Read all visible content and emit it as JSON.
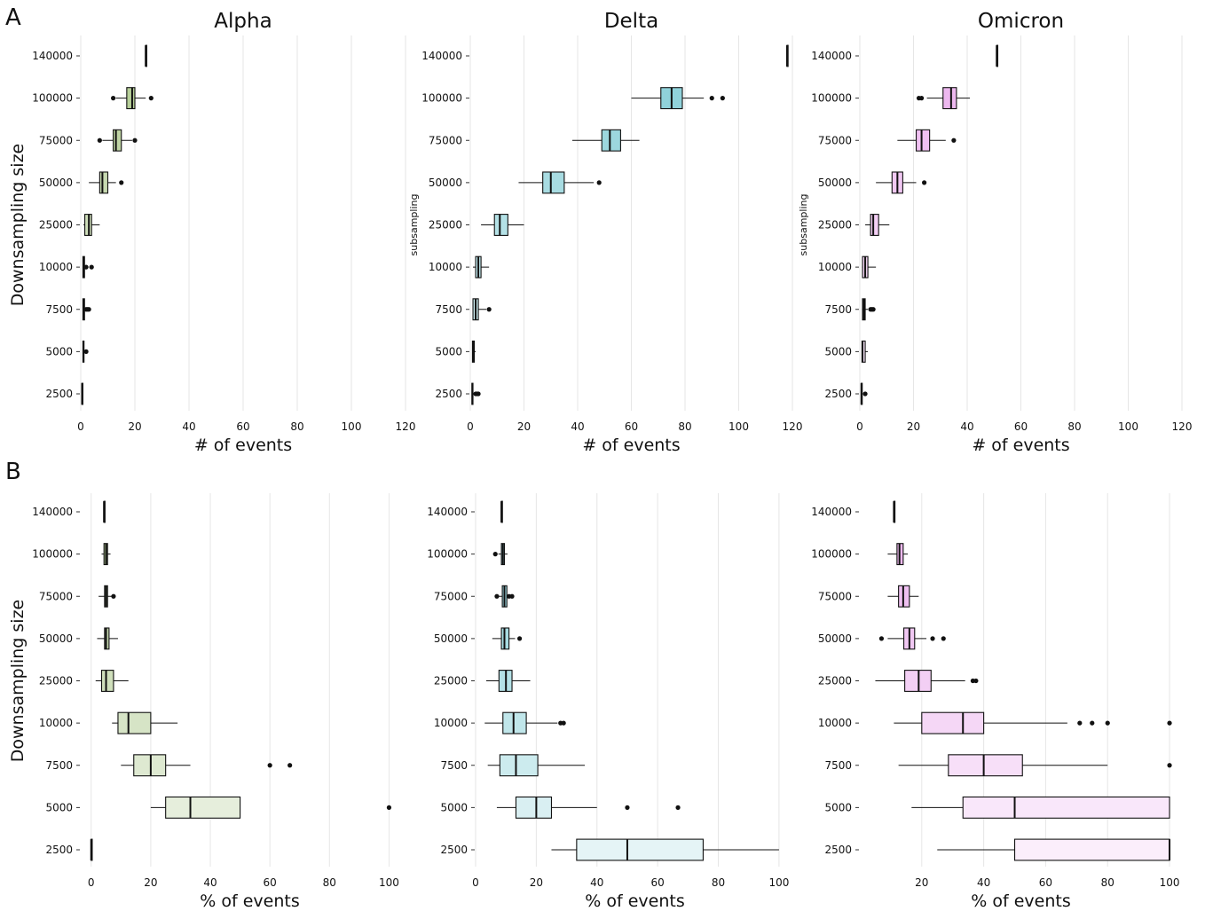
{
  "panel_letters": [
    "A",
    "B"
  ],
  "chart_data": [
    {
      "type": "boxplot",
      "row": "A",
      "title": "Alpha",
      "xlabel": "# of events",
      "ylabel": "Downsampling size",
      "color": "#8db35e",
      "xlim": [
        0,
        120
      ],
      "xticks": [
        0,
        20,
        40,
        60,
        80,
        100,
        120
      ],
      "categories": [
        "2500",
        "5000",
        "7500",
        "10000",
        "25000",
        "50000",
        "75000",
        "100000",
        "140000"
      ],
      "boxes": [
        {
          "cat": "2500",
          "q1": 0.4,
          "med": 0.5,
          "q3": 0.6,
          "lo": 0.4,
          "hi": 0.6,
          "out": []
        },
        {
          "cat": "5000",
          "q1": 0.8,
          "med": 1,
          "q3": 1.2,
          "lo": 0.8,
          "hi": 1.2,
          "out": [
            2
          ]
        },
        {
          "cat": "7500",
          "q1": 0.8,
          "med": 1,
          "q3": 1.4,
          "lo": 0.8,
          "hi": 2,
          "out": [
            2,
            2.5,
            3
          ]
        },
        {
          "cat": "10000",
          "q1": 0.8,
          "med": 1,
          "q3": 1.4,
          "lo": 0.8,
          "hi": 2,
          "out": [
            2,
            4
          ]
        },
        {
          "cat": "25000",
          "q1": 1.5,
          "med": 3,
          "q3": 4,
          "lo": 1,
          "hi": 7,
          "out": []
        },
        {
          "cat": "50000",
          "q1": 7,
          "med": 8,
          "q3": 10,
          "lo": 3,
          "hi": 13,
          "out": [
            15
          ]
        },
        {
          "cat": "75000",
          "q1": 12,
          "med": 13,
          "q3": 15,
          "lo": 8,
          "hi": 19,
          "out": [
            7,
            20
          ]
        },
        {
          "cat": "100000",
          "q1": 17,
          "med": 19,
          "q3": 20,
          "lo": 13,
          "hi": 24,
          "out": [
            12,
            26
          ]
        },
        {
          "cat": "140000",
          "q1": 24,
          "med": 24,
          "q3": 24,
          "lo": 24,
          "hi": 24,
          "out": []
        }
      ]
    },
    {
      "type": "boxplot",
      "row": "A",
      "title": "Delta",
      "xlabel": "# of events",
      "ylabel": "subsampling",
      "color": "#4fb8c4",
      "xlim": [
        0,
        120
      ],
      "xticks": [
        0,
        20,
        40,
        60,
        80,
        100,
        120
      ],
      "categories": [
        "2500",
        "5000",
        "7500",
        "10000",
        "25000",
        "50000",
        "75000",
        "100000",
        "140000"
      ],
      "boxes": [
        {
          "cat": "2500",
          "q1": 0.6,
          "med": 0.8,
          "q3": 1,
          "lo": 0.6,
          "hi": 1,
          "out": [
            2,
            2.5,
            3
          ]
        },
        {
          "cat": "5000",
          "q1": 0.8,
          "med": 1,
          "q3": 1.5,
          "lo": 0.8,
          "hi": 2,
          "out": []
        },
        {
          "cat": "7500",
          "q1": 1,
          "med": 2,
          "q3": 3,
          "lo": 1,
          "hi": 6,
          "out": [
            7
          ]
        },
        {
          "cat": "10000",
          "q1": 2,
          "med": 3,
          "q3": 4,
          "lo": 1,
          "hi": 7,
          "out": []
        },
        {
          "cat": "25000",
          "q1": 9,
          "med": 11,
          "q3": 14,
          "lo": 4,
          "hi": 20,
          "out": []
        },
        {
          "cat": "50000",
          "q1": 27,
          "med": 30,
          "q3": 35,
          "lo": 18,
          "hi": 46,
          "out": [
            48
          ]
        },
        {
          "cat": "75000",
          "q1": 49,
          "med": 52,
          "q3": 56,
          "lo": 38,
          "hi": 63,
          "out": []
        },
        {
          "cat": "100000",
          "q1": 71,
          "med": 75,
          "q3": 79,
          "lo": 60,
          "hi": 87,
          "out": [
            90,
            94
          ]
        },
        {
          "cat": "140000",
          "q1": 118,
          "med": 118,
          "q3": 118,
          "lo": 118,
          "hi": 118,
          "out": []
        }
      ]
    },
    {
      "type": "boxplot",
      "row": "A",
      "title": "Omicron",
      "xlabel": "# of events",
      "ylabel": "subsampling",
      "color": "#e28fe6",
      "xlim": [
        0,
        120
      ],
      "xticks": [
        0,
        20,
        40,
        60,
        80,
        100,
        120
      ],
      "categories": [
        "2500",
        "5000",
        "7500",
        "10000",
        "25000",
        "50000",
        "75000",
        "100000",
        "140000"
      ],
      "boxes": [
        {
          "cat": "2500",
          "q1": 0.5,
          "med": 0.6,
          "q3": 0.8,
          "lo": 0.5,
          "hi": 0.8,
          "out": [
            2
          ]
        },
        {
          "cat": "5000",
          "q1": 0.8,
          "med": 1,
          "q3": 2,
          "lo": 0.8,
          "hi": 3,
          "out": []
        },
        {
          "cat": "7500",
          "q1": 1,
          "med": 1.5,
          "q3": 2,
          "lo": 0.8,
          "hi": 3,
          "out": [
            4,
            4.5,
            5
          ]
        },
        {
          "cat": "10000",
          "q1": 1,
          "med": 2,
          "q3": 3,
          "lo": 0.8,
          "hi": 6,
          "out": []
        },
        {
          "cat": "25000",
          "q1": 4,
          "med": 5,
          "q3": 7,
          "lo": 2,
          "hi": 11,
          "out": []
        },
        {
          "cat": "50000",
          "q1": 12,
          "med": 14,
          "q3": 16,
          "lo": 6,
          "hi": 21,
          "out": [
            24
          ]
        },
        {
          "cat": "75000",
          "q1": 21,
          "med": 23,
          "q3": 26,
          "lo": 14,
          "hi": 32,
          "out": [
            35
          ]
        },
        {
          "cat": "100000",
          "q1": 31,
          "med": 34,
          "q3": 36,
          "lo": 25,
          "hi": 41,
          "out": [
            22,
            23
          ]
        },
        {
          "cat": "140000",
          "q1": 51,
          "med": 51,
          "q3": 51,
          "lo": 51,
          "hi": 51,
          "out": []
        }
      ]
    },
    {
      "type": "boxplot",
      "row": "B",
      "title": "",
      "xlabel": "% of events",
      "ylabel": "Downsampling size",
      "color": "#8db35e",
      "xlim": [
        -3.5,
        110
      ],
      "xticks": [
        0,
        20,
        40,
        60,
        80,
        100
      ],
      "categories": [
        "2500",
        "5000",
        "7500",
        "10000",
        "25000",
        "50000",
        "75000",
        "100000",
        "140000"
      ],
      "boxes": [
        {
          "cat": "2500",
          "q1": 0,
          "med": 0,
          "q3": 0,
          "lo": 0,
          "hi": 0,
          "out": []
        },
        {
          "cat": "5000",
          "q1": 25,
          "med": 33.3,
          "q3": 50,
          "lo": 20,
          "hi": 50,
          "out": [
            100
          ]
        },
        {
          "cat": "7500",
          "q1": 14.3,
          "med": 20,
          "q3": 25,
          "lo": 10,
          "hi": 33.3,
          "out": [
            60,
            66.7
          ]
        },
        {
          "cat": "10000",
          "q1": 9,
          "med": 12.5,
          "q3": 20,
          "lo": 7,
          "hi": 29,
          "out": []
        },
        {
          "cat": "25000",
          "q1": 3.5,
          "med": 5,
          "q3": 7.5,
          "lo": 1.5,
          "hi": 12.5,
          "out": []
        },
        {
          "cat": "50000",
          "q1": 4.5,
          "med": 5,
          "q3": 6,
          "lo": 2,
          "hi": 9,
          "out": []
        },
        {
          "cat": "75000",
          "q1": 4.5,
          "med": 5,
          "q3": 5.5,
          "lo": 2.5,
          "hi": 7,
          "out": [
            7.5
          ]
        },
        {
          "cat": "100000",
          "q1": 4.3,
          "med": 5,
          "q3": 5.5,
          "lo": 3.5,
          "hi": 6.5,
          "out": []
        },
        {
          "cat": "140000",
          "q1": 4.3,
          "med": 4.3,
          "q3": 4.3,
          "lo": 4.3,
          "hi": 4.3,
          "out": []
        }
      ]
    },
    {
      "type": "boxplot",
      "row": "B",
      "title": "",
      "xlabel": "% of events",
      "ylabel": "",
      "color": "#4fb8c4",
      "xlim": [
        0,
        105
      ],
      "xticks": [
        0,
        20,
        40,
        60,
        80,
        100
      ],
      "categories": [
        "2500",
        "5000",
        "7500",
        "10000",
        "25000",
        "50000",
        "75000",
        "100000",
        "140000"
      ],
      "boxes": [
        {
          "cat": "2500",
          "q1": 33.3,
          "med": 50,
          "q3": 75,
          "lo": 25,
          "hi": 100,
          "out": []
        },
        {
          "cat": "5000",
          "q1": 13.3,
          "med": 20,
          "q3": 25,
          "lo": 7,
          "hi": 40,
          "out": [
            50,
            66.7
          ]
        },
        {
          "cat": "7500",
          "q1": 8,
          "med": 13.3,
          "q3": 20.5,
          "lo": 4,
          "hi": 36,
          "out": []
        },
        {
          "cat": "10000",
          "q1": 9,
          "med": 12.5,
          "q3": 16.7,
          "lo": 3,
          "hi": 27,
          "out": [
            28,
            29
          ]
        },
        {
          "cat": "25000",
          "q1": 7.7,
          "med": 10,
          "q3": 12,
          "lo": 3.5,
          "hi": 18,
          "out": []
        },
        {
          "cat": "50000",
          "q1": 8.5,
          "med": 9.5,
          "q3": 11,
          "lo": 5.5,
          "hi": 13,
          "out": [
            14.5
          ]
        },
        {
          "cat": "75000",
          "q1": 8.8,
          "med": 9.5,
          "q3": 10.3,
          "lo": 6.5,
          "hi": 11.5,
          "out": [
            7,
            11,
            12
          ]
        },
        {
          "cat": "100000",
          "q1": 8.5,
          "med": 9,
          "q3": 9.5,
          "lo": 7.5,
          "hi": 10.5,
          "out": [
            6.5
          ]
        },
        {
          "cat": "140000",
          "q1": 8.5,
          "med": 8.5,
          "q3": 8.5,
          "lo": 8.5,
          "hi": 8.5,
          "out": []
        }
      ]
    },
    {
      "type": "boxplot",
      "row": "B",
      "title": "",
      "xlabel": "% of events",
      "ylabel": "",
      "color": "#e28fe6",
      "xlim": [
        0,
        104
      ],
      "xticks": [
        20,
        40,
        60,
        80,
        100
      ],
      "categories": [
        "2500",
        "5000",
        "7500",
        "10000",
        "25000",
        "50000",
        "75000",
        "100000",
        "140000"
      ],
      "boxes": [
        {
          "cat": "2500",
          "q1": 50,
          "med": 100,
          "q3": 100,
          "lo": 25,
          "hi": 100,
          "out": []
        },
        {
          "cat": "5000",
          "q1": 33.3,
          "med": 50,
          "q3": 100,
          "lo": 16.7,
          "hi": 100,
          "out": []
        },
        {
          "cat": "7500",
          "q1": 28.6,
          "med": 40,
          "q3": 52.5,
          "lo": 12.5,
          "hi": 80,
          "out": [
            100
          ]
        },
        {
          "cat": "10000",
          "q1": 20,
          "med": 33.3,
          "q3": 40,
          "lo": 11,
          "hi": 67,
          "out": [
            71,
            75,
            80,
            100
          ]
        },
        {
          "cat": "25000",
          "q1": 14.5,
          "med": 19,
          "q3": 23,
          "lo": 5,
          "hi": 34,
          "out": [
            36.5,
            37.5
          ]
        },
        {
          "cat": "50000",
          "q1": 14.2,
          "med": 16,
          "q3": 17.7,
          "lo": 9,
          "hi": 21.5,
          "out": [
            7,
            23.5,
            27
          ]
        },
        {
          "cat": "75000",
          "q1": 12.5,
          "med": 14,
          "q3": 16,
          "lo": 9,
          "hi": 19,
          "out": []
        },
        {
          "cat": "100000",
          "q1": 12,
          "med": 12.8,
          "q3": 14,
          "lo": 9,
          "hi": 15.5,
          "out": []
        },
        {
          "cat": "140000",
          "q1": 11,
          "med": 11,
          "q3": 11,
          "lo": 11,
          "hi": 11,
          "out": []
        }
      ]
    }
  ]
}
